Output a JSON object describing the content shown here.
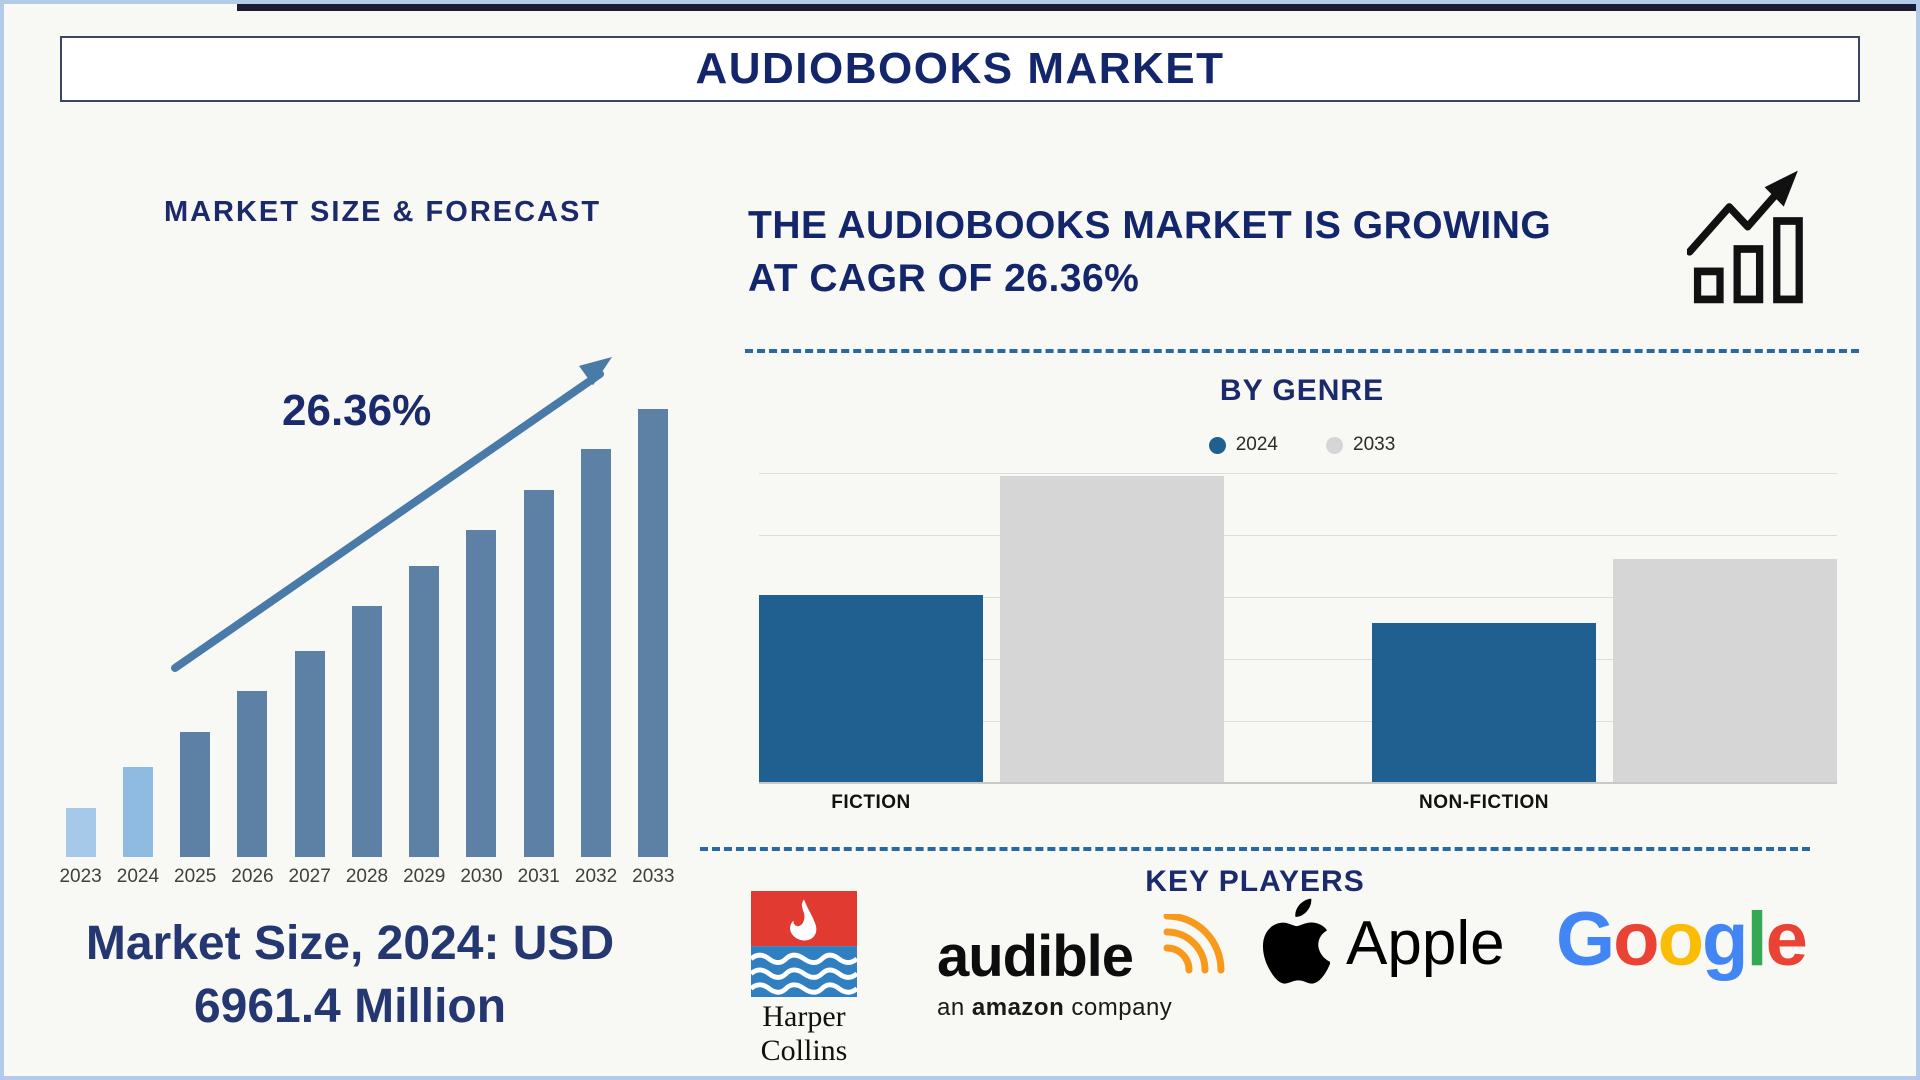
{
  "window": {
    "title": "AUDIOBOOKS MARKET"
  },
  "colors": {
    "navy_text": "#14266b",
    "steel_bar": "#5d81a5",
    "light_bar_2023": "#a6c9ea",
    "light_bar_2024": "#8fbbe3",
    "genre_2024": "#1f6090",
    "genre_2033": "#d6d6d6",
    "dashed_divider": "#2a67a5",
    "trend_arrow": "#4a7aa8"
  },
  "left_panel": {
    "section_title": "MARKET SIZE & FORECAST",
    "cagr_label": "26.36%",
    "caption_line1": "Market Size, 2024: USD",
    "caption_line2": "6961.4 Million"
  },
  "right_panel": {
    "headline_line1": "THE AUDIOBOOKS MARKET IS GROWING",
    "headline_line2": "AT CAGR OF 26.36%",
    "genre_section": {
      "title": "BY GENRE"
    },
    "key_players": {
      "title": "KEY PLAYERS",
      "harpercollins_line1": "Harper",
      "harpercollins_line2": "Collins",
      "audible_wordmark": "audible",
      "audible_tagline_pre": "an ",
      "audible_tagline_bold": "amazon",
      "audible_tagline_post": " company",
      "apple_wordmark": "Apple",
      "google_letters": [
        {
          "ch": "G",
          "color": "#4285F4"
        },
        {
          "ch": "o",
          "color": "#EA4335"
        },
        {
          "ch": "o",
          "color": "#FBBC05"
        },
        {
          "ch": "g",
          "color": "#4285F4"
        },
        {
          "ch": "l",
          "color": "#34A853"
        },
        {
          "ch": "e",
          "color": "#EA4335"
        }
      ]
    }
  },
  "chart_data": [
    {
      "type": "bar",
      "title": "MARKET SIZE & FORECAST",
      "categories": [
        "2023",
        "2024",
        "2025",
        "2026",
        "2027",
        "2028",
        "2029",
        "2030",
        "2031",
        "2032",
        "2033"
      ],
      "values_pct_of_tallest_bar": [
        11,
        20,
        28,
        37,
        46,
        56,
        65,
        73,
        82,
        91,
        100
      ],
      "known_values": {
        "2024": "USD 6961.4 Million"
      },
      "cagr": "26.36%",
      "bar_colors": [
        "#a6c9ea",
        "#8fbbe3",
        "#5d81a5",
        "#5d81a5",
        "#5d81a5",
        "#5d81a5",
        "#5d81a5",
        "#5d81a5",
        "#5d81a5",
        "#5d81a5",
        "#5d81a5"
      ],
      "xlabel": "",
      "ylabel": "",
      "grid": false,
      "legend": "none"
    },
    {
      "type": "bar",
      "title": "BY GENRE",
      "categories": [
        "FICTION",
        "NON-FICTION"
      ],
      "series": [
        {
          "name": "2024",
          "color": "#1f6090",
          "values_pct_of_tallest_bar": [
            61,
            52
          ]
        },
        {
          "name": "2033",
          "color": "#d6d6d6",
          "values_pct_of_tallest_bar": [
            100,
            73
          ]
        }
      ],
      "xlabel": "",
      "ylabel": "",
      "grid": true,
      "legend_position": "top-center"
    }
  ]
}
